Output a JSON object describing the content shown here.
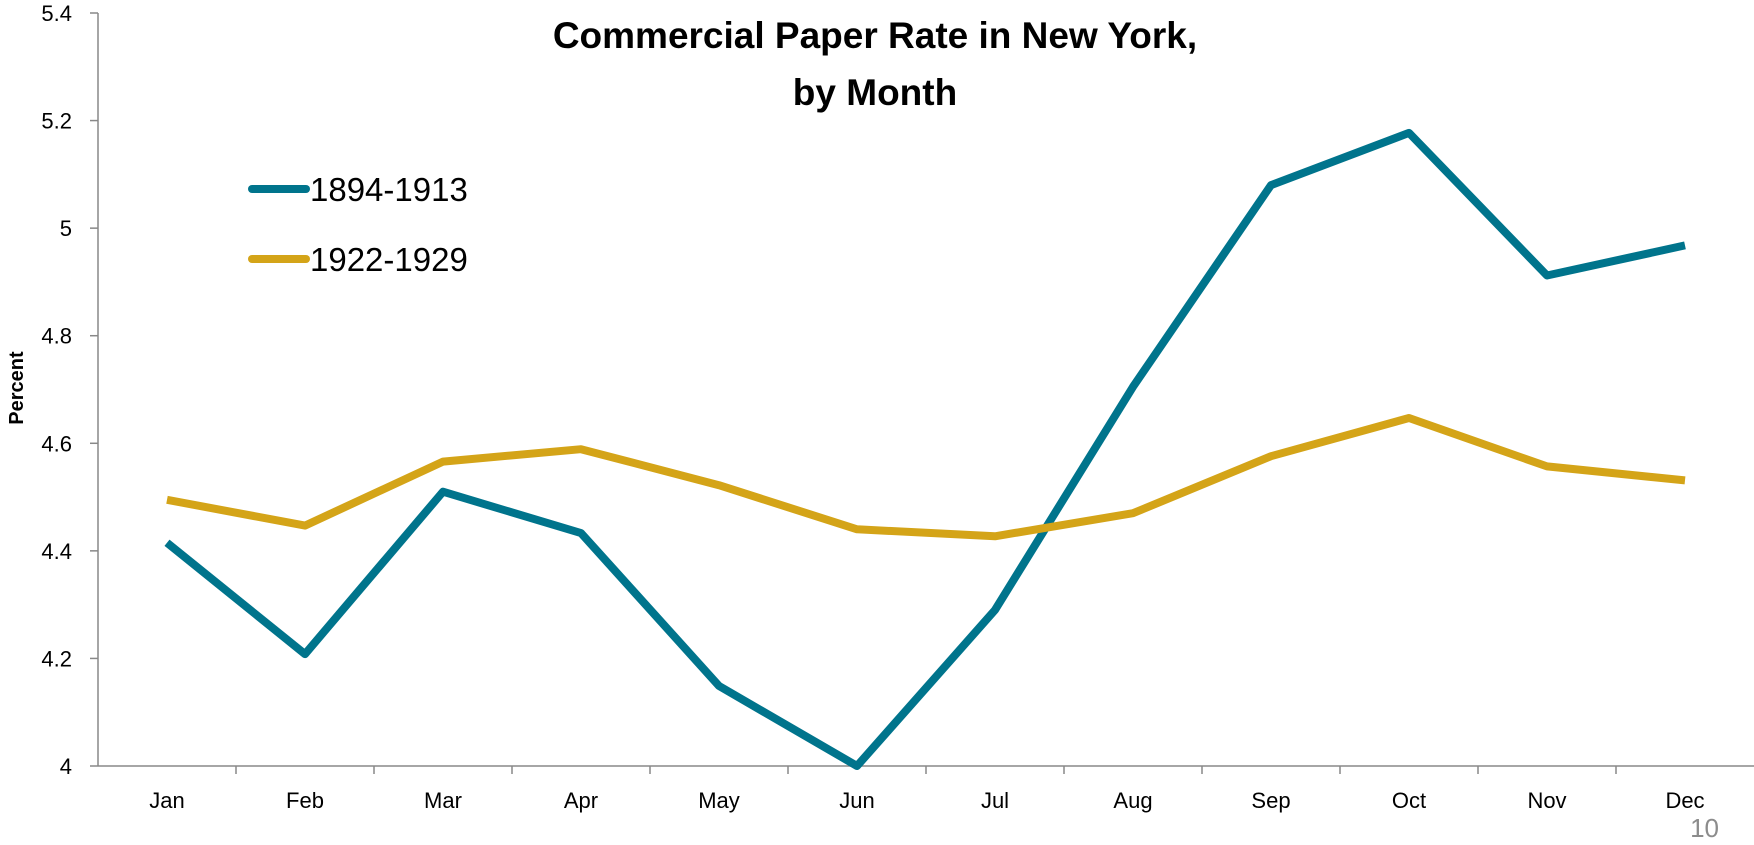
{
  "chart_data": {
    "type": "line",
    "title": "Commercial Paper Rate in New York,",
    "subtitle": "by Month",
    "xlabel": "",
    "ylabel": "Percent",
    "categories": [
      "Jan",
      "Feb",
      "Mar",
      "Apr",
      "May",
      "Jun",
      "Jul",
      "Aug",
      "Sep",
      "Oct",
      "Nov",
      "Dec"
    ],
    "ylim": [
      4,
      5.4
    ],
    "yticks": [
      "4",
      "4.2",
      "4.4",
      "4.6",
      "4.8",
      "5",
      "5.2",
      "5.4"
    ],
    "grid": false,
    "legend_position": "top-left",
    "series": [
      {
        "name": "1894-1913",
        "color": "#00748c",
        "values": [
          4.415,
          4.208,
          4.51,
          4.433,
          4.149,
          4.0,
          4.29,
          4.705,
          5.08,
          5.177,
          4.912,
          4.968
        ]
      },
      {
        "name": "1922-1929",
        "color": "#d4a418",
        "values": [
          4.495,
          4.447,
          4.566,
          4.589,
          4.522,
          4.44,
          4.427,
          4.47,
          4.576,
          4.647,
          4.557,
          4.531
        ]
      }
    ]
  },
  "page_number": "10"
}
